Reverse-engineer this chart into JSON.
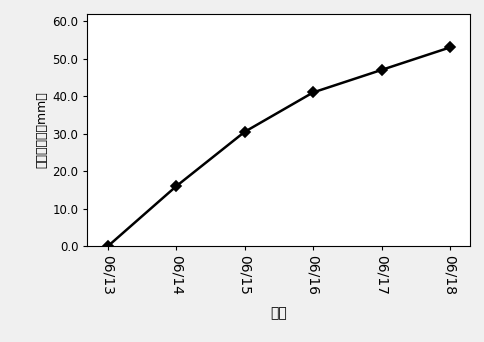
{
  "x_labels": [
    "06/13",
    "06/14",
    "06/15",
    "06/16",
    "06/17",
    "06/18"
  ],
  "x_values": [
    0,
    1,
    2,
    3,
    4,
    5
  ],
  "y_values": [
    0.0,
    16.0,
    30.5,
    41.0,
    47.0,
    53.0
  ],
  "yticks": [
    0.0,
    10.0,
    20.0,
    30.0,
    40.0,
    50.0,
    60.0
  ],
  "ytick_labels": [
    "0.0",
    "10.0",
    "20.0",
    "30.0",
    "40.0",
    "50.0",
    "60.0"
  ],
  "ylim": [
    0,
    62
  ],
  "ylabel": "累计沉降値（mm）",
  "xlabel": "日期",
  "line_color": "#000000",
  "marker": "D",
  "marker_size": 5,
  "marker_facecolor": "#000000",
  "linewidth": 1.8,
  "background_color": "#f0f0f0",
  "plot_bg_color": "#ffffff"
}
